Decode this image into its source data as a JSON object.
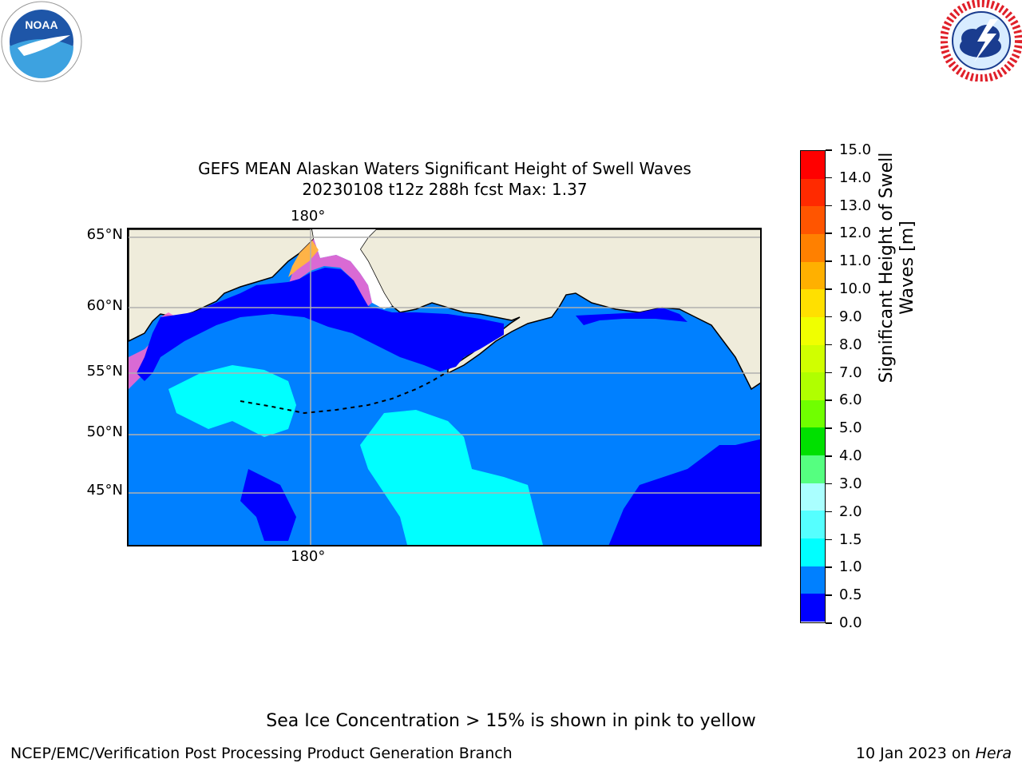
{
  "title_line1": "GEFS MEAN Alaskan Waters Significant Height of Swell Waves",
  "title_line2": "20230108 t12z 288h fcst   Max: 1.37",
  "lat_labels": [
    "65°N",
    "60°N",
    "55°N",
    "50°N",
    "45°N"
  ],
  "lon_label_top": "180°",
  "lon_label_bottom": "180°",
  "colorbar": {
    "title": "Significant Height of Swell Waves [m]",
    "ticks": [
      "15.0",
      "14.0",
      "13.0",
      "12.0",
      "11.0",
      "10.0",
      "9.0",
      "8.0",
      "7.0",
      "6.0",
      "5.0",
      "4.0",
      "3.0",
      "2.0",
      "1.5",
      "1.0",
      "0.5",
      "0.0"
    ],
    "colors": [
      "#ff0000",
      "#ff2a00",
      "#ff5500",
      "#ff8000",
      "#ffb000",
      "#ffe000",
      "#f0ff00",
      "#d0ff00",
      "#b0ff00",
      "#70ff00",
      "#00e000",
      "#55ff80",
      "#aaffff",
      "#55ffff",
      "#00ffff",
      "#0080ff",
      "#0000ff"
    ]
  },
  "legend_colors": {
    "ocean_low": "#0000ff",
    "ocean_mid": "#0080ff",
    "ocean_high": "#00ffff",
    "land": "#efecdb",
    "ice_pink": "#ff66cc",
    "ice_orange": "#ffb347"
  },
  "logos": {
    "noaa": "NOAA",
    "nws": "NATIONAL WEATHER SERVICE"
  },
  "note": "Sea Ice Concentration > 15% is shown in pink to yellow",
  "footer_left": "NCEP/EMC/Verification Post Processing Product Generation Branch",
  "footer_date": "10 Jan 2023 on ",
  "footer_machine": "Hera"
}
